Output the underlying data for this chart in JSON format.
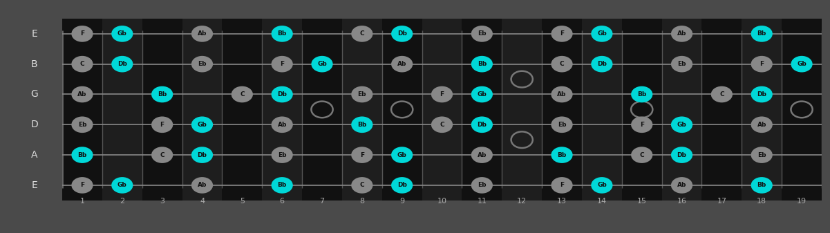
{
  "figsize": [
    12.01,
    3.37
  ],
  "dpi": 100,
  "bg_color": "#4a4a4a",
  "fretboard_dark": "#111111",
  "fretboard_light": "#1e1e1e",
  "fret_bar_color": "#555555",
  "string_color": "#888888",
  "label_color": "#dddddd",
  "num_frets": 19,
  "chord_tones": [
    "Gb",
    "Bb",
    "Db"
  ],
  "note_color_chord": "#00d8d8",
  "note_color_scale": "#888888",
  "note_text_color": "#111111",
  "hollow_color": "#777777",
  "fret_label_color": "#aaaaaa",
  "strings": [
    "E",
    "B",
    "G",
    "D",
    "A",
    "E"
  ],
  "notes": {
    "E_high": [
      "F",
      "Gb",
      "",
      "Ab",
      "",
      "Bb",
      "",
      "C",
      "Db",
      "",
      "Eb",
      "",
      "F",
      "Gb",
      "",
      "Ab",
      "",
      "Bb",
      ""
    ],
    "B": [
      "C",
      "Db",
      "",
      "Eb",
      "",
      "F",
      "Gb",
      "",
      "Ab",
      "",
      "Bb",
      "",
      "C",
      "Db",
      "",
      "Eb",
      "",
      "F",
      "Gb"
    ],
    "G": [
      "Ab",
      "",
      "Bb",
      "",
      "C",
      "Db",
      "",
      "Eb",
      "",
      "F",
      "Gb",
      "",
      "Ab",
      "",
      "Bb",
      "",
      "C",
      "Db",
      ""
    ],
    "D": [
      "Eb",
      "",
      "F",
      "Gb",
      "",
      "Ab",
      "",
      "Bb",
      "",
      "C",
      "Db",
      "",
      "Eb",
      "",
      "F",
      "Gb",
      "",
      "Ab",
      ""
    ],
    "A": [
      "Bb",
      "",
      "C",
      "Db",
      "",
      "Eb",
      "",
      "F",
      "Gb",
      "",
      "Ab",
      "",
      "Bb",
      "",
      "C",
      "Db",
      "",
      "Eb",
      ""
    ],
    "E_low": [
      "F",
      "Gb",
      "",
      "Ab",
      "",
      "Bb",
      "",
      "C",
      "Db",
      "",
      "Eb",
      "",
      "F",
      "Gb",
      "",
      "Ab",
      "",
      "Bb",
      ""
    ]
  },
  "hollow_circles": [
    [
      7,
      2.5
    ],
    [
      9,
      2.5
    ],
    [
      12,
      1.5
    ],
    [
      12,
      3.5
    ],
    [
      15,
      2.5
    ],
    [
      19,
      2.5
    ]
  ]
}
